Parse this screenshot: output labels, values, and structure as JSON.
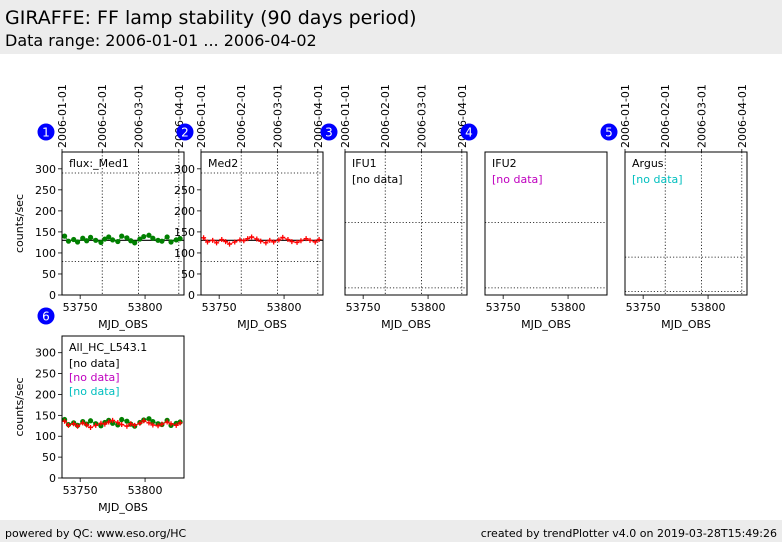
{
  "header": {
    "title": "GIRAFFE: FF lamp stability (90 days period)",
    "subtitle": "Data range: 2006-01-01 ... 2006-04-02"
  },
  "footer": {
    "left": "powered by QC: www.eso.org/HC",
    "right": "created by trendPlotter v4.0 on 2019-03-28T15:49:26"
  },
  "colors": {
    "green": "#008000",
    "red": "#ff0000",
    "magenta": "#bf00bf",
    "cyan": "#00bfbf",
    "badge": "#0000ff"
  },
  "chart_data": [
    {
      "number": "1",
      "type": "scatter",
      "label": "flux:_Med1",
      "ylabel": "counts/sec",
      "xlabel": "MJD_OBS",
      "xlim": [
        53736,
        53830
      ],
      "ylim": [
        0,
        340
      ],
      "xticks": [
        53750,
        53800
      ],
      "yticks": [
        0,
        50,
        100,
        150,
        200,
        250,
        300
      ],
      "date_ticks": [
        {
          "mjd": 53736,
          "label": "2006-01-01"
        },
        {
          "mjd": 53767,
          "label": "2006-02-01"
        },
        {
          "mjd": 53795,
          "label": "2006-03-01"
        },
        {
          "mjd": 53826,
          "label": "2006-04-01"
        }
      ],
      "hlines": [
        {
          "y": 290,
          "style": "dotted"
        },
        {
          "y": 130,
          "style": "solid"
        },
        {
          "y": 80,
          "style": "dotted"
        }
      ],
      "nodata": [],
      "series": [
        {
          "name": "green",
          "color": "green",
          "marker": "dot",
          "x": [
            53738,
            53741,
            53745,
            53748,
            53752,
            53755,
            53758,
            53762,
            53766,
            53769,
            53772,
            53775,
            53779,
            53782,
            53786,
            53789,
            53792,
            53796,
            53799,
            53803,
            53806,
            53810,
            53813,
            53817,
            53820,
            53824,
            53827
          ],
          "y": [
            140,
            128,
            132,
            126,
            135,
            129,
            137,
            130,
            125,
            133,
            138,
            131,
            127,
            140,
            136,
            129,
            124,
            133,
            139,
            142,
            135,
            130,
            128,
            138,
            126,
            131,
            134
          ]
        }
      ]
    },
    {
      "number": "2",
      "type": "scatter",
      "label": "Med2",
      "ylabel": "",
      "xlabel": "MJD_OBS",
      "xlim": [
        53736,
        53830
      ],
      "ylim": [
        0,
        340
      ],
      "xticks": [
        53750,
        53800
      ],
      "yticks": [
        0,
        50,
        100,
        150,
        200,
        250,
        300
      ],
      "date_ticks": [
        {
          "mjd": 53736,
          "label": "2006-01-01"
        },
        {
          "mjd": 53767,
          "label": "2006-02-01"
        },
        {
          "mjd": 53795,
          "label": "2006-03-01"
        },
        {
          "mjd": 53826,
          "label": "2006-04-01"
        }
      ],
      "hlines": [
        {
          "y": 290,
          "style": "dotted"
        },
        {
          "y": 130,
          "style": "solid"
        },
        {
          "y": 80,
          "style": "dotted"
        }
      ],
      "nodata": [],
      "series": [
        {
          "name": "red",
          "color": "red",
          "marker": "cross",
          "x": [
            53738,
            53741,
            53745,
            53748,
            53752,
            53755,
            53758,
            53762,
            53766,
            53769,
            53772,
            53775,
            53779,
            53782,
            53786,
            53789,
            53792,
            53796,
            53799,
            53803,
            53806,
            53810,
            53813,
            53817,
            53820,
            53824,
            53827
          ],
          "y": [
            136,
            126,
            130,
            124,
            132,
            127,
            121,
            126,
            131,
            129,
            134,
            138,
            133,
            128,
            124,
            130,
            126,
            131,
            137,
            132,
            127,
            125,
            129,
            134,
            130,
            126,
            132
          ]
        }
      ]
    },
    {
      "number": "3",
      "type": "scatter",
      "label": "IFU1",
      "ylabel": "",
      "xlabel": "MJD_OBS",
      "xlim": [
        53736,
        53830
      ],
      "ylim": [
        0,
        340
      ],
      "xticks": [
        53750,
        53800
      ],
      "yticks": [],
      "date_ticks": [
        {
          "mjd": 53736,
          "label": "2006-01-01"
        },
        {
          "mjd": 53767,
          "label": "2006-02-01"
        },
        {
          "mjd": 53795,
          "label": "2006-03-01"
        },
        {
          "mjd": 53826,
          "label": "2006-04-01"
        }
      ],
      "hlines": [
        {
          "y": 172,
          "style": "dotted"
        },
        {
          "y": 17,
          "style": "dotted"
        }
      ],
      "nodata": [
        {
          "text": "[no data]",
          "color": "#000000"
        }
      ],
      "series": []
    },
    {
      "number": "4",
      "type": "scatter",
      "label": "IFU2",
      "ylabel": "",
      "xlabel": "MJD_OBS",
      "xlim": [
        53736,
        53830
      ],
      "ylim": [
        0,
        340
      ],
      "xticks": [
        53750,
        53800
      ],
      "yticks": [],
      "date_ticks": [],
      "hlines": [
        {
          "y": 172,
          "style": "dotted"
        },
        {
          "y": 17,
          "style": "dotted"
        }
      ],
      "nodata": [
        {
          "text": "[no data]",
          "color": "#bf00bf"
        }
      ],
      "series": []
    },
    {
      "number": "5",
      "type": "scatter",
      "label": "Argus",
      "ylabel": "",
      "xlabel": "MJD_OBS",
      "xlim": [
        53736,
        53830
      ],
      "ylim": [
        0,
        340
      ],
      "xticks": [
        53750,
        53800
      ],
      "yticks": [],
      "date_ticks": [
        {
          "mjd": 53736,
          "label": "2006-01-01"
        },
        {
          "mjd": 53767,
          "label": "2006-02-01"
        },
        {
          "mjd": 53795,
          "label": "2006-03-01"
        },
        {
          "mjd": 53826,
          "label": "2006-04-01"
        }
      ],
      "hlines": [
        {
          "y": 90,
          "style": "dotted"
        },
        {
          "y": 8,
          "style": "dotted"
        }
      ],
      "nodata": [
        {
          "text": "[no data]",
          "color": "#00bfbf"
        }
      ],
      "series": []
    },
    {
      "number": "6",
      "type": "scatter",
      "label": "All_HC_L543.1",
      "ylabel": "counts/sec",
      "xlabel": "MJD_OBS",
      "xlim": [
        53736,
        53830
      ],
      "ylim": [
        0,
        340
      ],
      "xticks": [
        53750,
        53800
      ],
      "yticks": [
        0,
        50,
        100,
        150,
        200,
        250,
        300
      ],
      "date_ticks": [],
      "hlines": [],
      "nodata": [
        {
          "text": "[no data]",
          "color": "#000000"
        },
        {
          "text": "[no data]",
          "color": "#bf00bf"
        },
        {
          "text": "[no data]",
          "color": "#00bfbf"
        }
      ],
      "series": [
        {
          "name": "green",
          "color": "green",
          "marker": "dot",
          "x": [
            53738,
            53741,
            53745,
            53748,
            53752,
            53755,
            53758,
            53762,
            53766,
            53769,
            53772,
            53775,
            53779,
            53782,
            53786,
            53789,
            53792,
            53796,
            53799,
            53803,
            53806,
            53810,
            53813,
            53817,
            53820,
            53824,
            53827
          ],
          "y": [
            140,
            128,
            132,
            126,
            135,
            129,
            137,
            130,
            125,
            133,
            138,
            131,
            127,
            140,
            136,
            129,
            124,
            133,
            139,
            142,
            135,
            130,
            128,
            138,
            126,
            131,
            134
          ]
        },
        {
          "name": "red",
          "color": "red",
          "marker": "cross",
          "x": [
            53738,
            53741,
            53745,
            53748,
            53752,
            53755,
            53758,
            53762,
            53766,
            53769,
            53772,
            53775,
            53779,
            53782,
            53786,
            53789,
            53792,
            53796,
            53799,
            53803,
            53806,
            53810,
            53813,
            53817,
            53820,
            53824,
            53827
          ],
          "y": [
            136,
            126,
            130,
            124,
            132,
            127,
            121,
            126,
            131,
            129,
            134,
            138,
            133,
            128,
            124,
            130,
            126,
            131,
            137,
            132,
            127,
            125,
            129,
            134,
            130,
            126,
            132
          ]
        }
      ]
    }
  ]
}
